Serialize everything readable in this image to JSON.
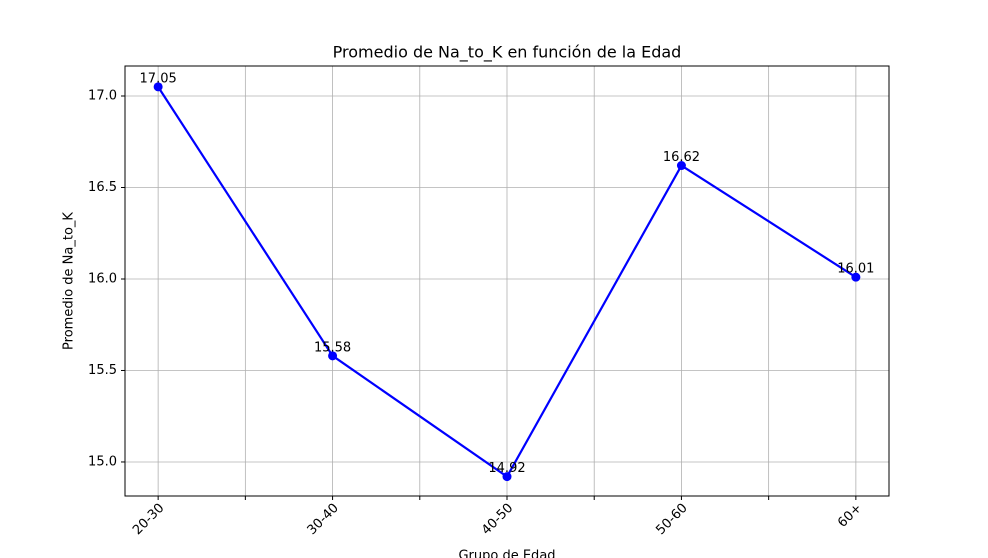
{
  "chart_data": {
    "type": "line",
    "title": "Promedio de Na_to_K en función de la Edad",
    "x_label": "Grupo de Edad",
    "y_label": "Promedio de Na_to_K",
    "categories": [
      "20-30",
      "30-40",
      "40-50",
      "50-60",
      "60+"
    ],
    "series": [
      {
        "name": "Promedio de Na_to_K",
        "color": "#0000ff",
        "values": [
          17.05,
          15.58,
          14.92,
          16.62,
          16.01
        ]
      }
    ],
    "ylim": [
      14.814,
      17.164
    ],
    "yticks": [
      {
        "value": 15.0,
        "label": "15.0"
      },
      {
        "value": 15.5,
        "label": "15.5"
      },
      {
        "value": 16.0,
        "label": "16.0"
      },
      {
        "value": 16.5,
        "label": "16.5"
      },
      {
        "value": 17.0,
        "label": "17.0"
      }
    ],
    "grid": true
  }
}
